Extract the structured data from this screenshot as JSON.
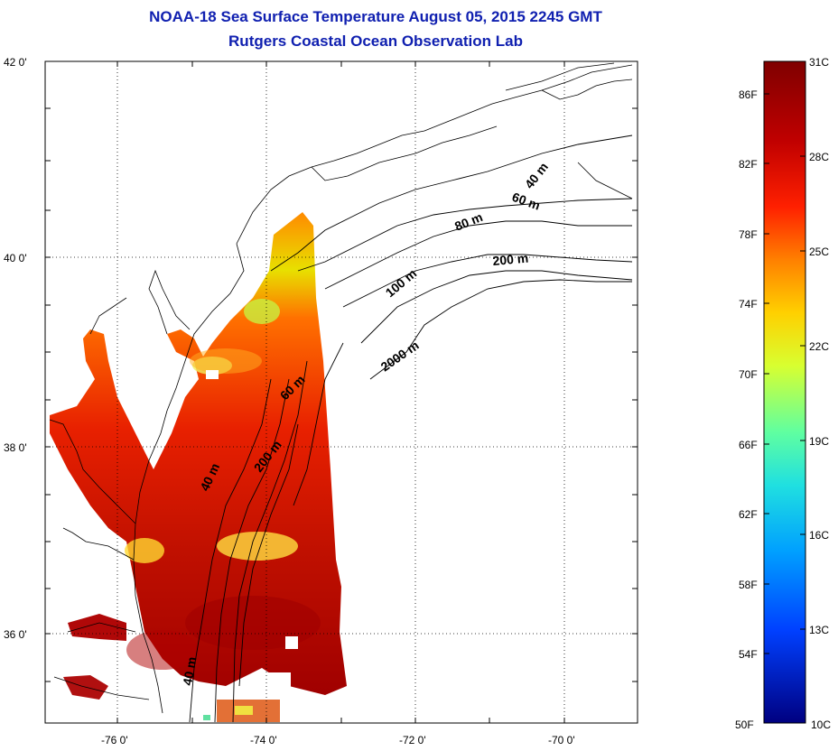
{
  "title": {
    "line1": "NOAA-18 Sea Surface Temperature August 05, 2015 2245 GMT",
    "line2": "Rutgers Coastal Ocean Observation Lab"
  },
  "map": {
    "lat_labels": [
      "42 0'",
      "40 0'",
      "38 0'",
      "36 0'"
    ],
    "lon_labels": [
      "-76 0'",
      "-74 0'",
      "-72 0'",
      "-70 0'"
    ],
    "contour_labels": [
      "40 m",
      "60 m",
      "80 m",
      "200 m",
      "100 m",
      "2000 m",
      "60 m",
      "200 m",
      "40 m",
      "40 m"
    ]
  },
  "colorbar": {
    "celsius_labels": [
      "31C",
      "28C",
      "25C",
      "22C",
      "19C",
      "16C",
      "13C",
      "10C"
    ],
    "fahrenheit_labels": [
      "86F",
      "82F",
      "78F",
      "74F",
      "70F",
      "66F",
      "62F",
      "58F",
      "54F",
      "50F"
    ],
    "colors": [
      "#7f0000",
      "#c00000",
      "#ff2000",
      "#ff8000",
      "#ffd000",
      "#c0ff40",
      "#40ffc0",
      "#00c0ff",
      "#0060ff",
      "#0000c0",
      "#000080"
    ]
  }
}
